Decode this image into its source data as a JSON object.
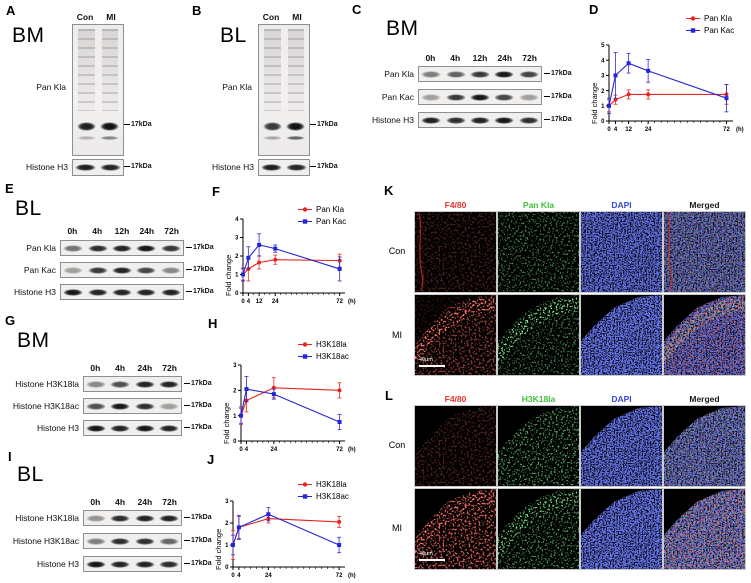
{
  "panels": {
    "A": {
      "label": "A",
      "tissue": "BM",
      "lanes": [
        "Con",
        "MI"
      ],
      "probe": "Pan Kla",
      "marker": "17kDa",
      "loading_control": "Histone H3",
      "main_band_intensities": [
        0.92,
        0.97
      ],
      "sub_band_intensities": [
        0.25,
        0.45
      ],
      "h3_intensities": [
        0.92,
        0.9
      ]
    },
    "B": {
      "label": "B",
      "tissue": "BL",
      "lanes": [
        "Con",
        "MI"
      ],
      "probe": "Pan Kla",
      "marker": "17kDa",
      "loading_control": "Histone H3",
      "main_band_intensities": [
        0.8,
        0.98
      ],
      "sub_band_intensities": [
        0.3,
        0.6
      ],
      "h3_intensities": [
        0.92,
        0.88
      ]
    },
    "C": {
      "label": "C",
      "tissue": "BM",
      "marker": "17kDa",
      "timepoints": [
        "0h",
        "4h",
        "12h",
        "24h",
        "72h"
      ],
      "rows": [
        {
          "name": "Pan Kla",
          "intensities": [
            0.5,
            0.62,
            0.8,
            0.95,
            0.75
          ]
        },
        {
          "name": "Pan Kac",
          "intensities": [
            0.35,
            0.8,
            0.95,
            0.75,
            0.35
          ]
        },
        {
          "name": "Histone H3",
          "intensities": [
            0.92,
            0.85,
            0.9,
            0.95,
            0.85
          ]
        }
      ]
    },
    "E": {
      "label": "E",
      "tissue": "BL",
      "marker": "17kDa",
      "timepoints": [
        "0h",
        "4h",
        "12h",
        "24h",
        "72h"
      ],
      "rows": [
        {
          "name": "Pan Kla",
          "intensities": [
            0.55,
            0.85,
            0.9,
            0.95,
            0.8
          ]
        },
        {
          "name": "Pan Kac",
          "intensities": [
            0.35,
            0.8,
            0.9,
            0.75,
            0.45
          ]
        },
        {
          "name": "Histone H3",
          "intensities": [
            0.95,
            0.9,
            0.9,
            0.9,
            0.9
          ]
        }
      ]
    },
    "G": {
      "label": "G",
      "tissue": "BM",
      "marker": "17kDa",
      "timepoints": [
        "0h",
        "4h",
        "24h",
        "72h"
      ],
      "rows": [
        {
          "name": "Histone H3K18la",
          "intensities": [
            0.45,
            0.7,
            0.9,
            0.9
          ]
        },
        {
          "name": "Histone H3K18ac",
          "intensities": [
            0.7,
            0.95,
            0.85,
            0.35
          ]
        },
        {
          "name": "Histone H3",
          "intensities": [
            0.95,
            0.9,
            0.95,
            0.9
          ]
        }
      ]
    },
    "I": {
      "label": "I",
      "tissue": "BL",
      "marker": "17kDa",
      "timepoints": [
        "0h",
        "4h",
        "24h",
        "72h"
      ],
      "rows": [
        {
          "name": "Histone H3K18la",
          "intensities": [
            0.4,
            0.85,
            0.9,
            0.9
          ]
        },
        {
          "name": "Histone H3K18ac",
          "intensities": [
            0.5,
            0.85,
            0.85,
            0.6
          ]
        },
        {
          "name": "Histone H3",
          "intensities": [
            0.95,
            0.9,
            0.9,
            0.85
          ]
        }
      ]
    }
  },
  "chart_data": [
    {
      "panel": "D",
      "type": "line",
      "ylabel": "Fold change",
      "xlabel_unit": "(h)",
      "grid": false,
      "legend_position": "top-right",
      "x": [
        0,
        4,
        12,
        24,
        72
      ],
      "x_tick_labels": [
        "0",
        "4",
        "12",
        "24",
        "72"
      ],
      "xlim": [
        0,
        76
      ],
      "ylim": [
        0,
        5
      ],
      "yticks": [
        0,
        1,
        2,
        3,
        4,
        5
      ],
      "series": [
        {
          "name": "Pan Kla",
          "color": "#e8251e",
          "marker": "circle",
          "values": [
            1.0,
            1.4,
            1.75,
            1.75,
            1.75
          ],
          "errors": [
            0.4,
            0.3,
            0.3,
            0.3,
            0.65
          ]
        },
        {
          "name": "Pan Kac",
          "color": "#2525d8",
          "marker": "square",
          "values": [
            1.0,
            3.0,
            3.8,
            3.3,
            1.5
          ],
          "errors": [
            0.5,
            1.5,
            0.65,
            0.75,
            0.9
          ]
        }
      ]
    },
    {
      "panel": "F",
      "type": "line",
      "ylabel": "Fold change",
      "xlabel_unit": "(h)",
      "grid": false,
      "legend_position": "top-right",
      "x": [
        0,
        4,
        12,
        24,
        72
      ],
      "x_tick_labels": [
        "0",
        "4",
        "12",
        "24",
        "72"
      ],
      "xlim": [
        0,
        76
      ],
      "ylim": [
        0,
        4
      ],
      "yticks": [
        0,
        1,
        2,
        3,
        4
      ],
      "series": [
        {
          "name": "Pan Kla",
          "color": "#e8251e",
          "marker": "circle",
          "values": [
            1.0,
            1.3,
            1.65,
            1.8,
            1.75
          ],
          "errors": [
            0.3,
            0.65,
            0.35,
            0.25,
            0.35
          ]
        },
        {
          "name": "Pan Kac",
          "color": "#2525d8",
          "marker": "square",
          "values": [
            1.0,
            1.9,
            2.6,
            2.4,
            1.3
          ],
          "errors": [
            0.35,
            0.6,
            0.6,
            0.2,
            0.65
          ]
        }
      ]
    },
    {
      "panel": "H",
      "type": "line",
      "ylabel": "Fold change",
      "xlabel_unit": "(h)",
      "grid": false,
      "legend_position": "top-right",
      "x": [
        0,
        4,
        24,
        72
      ],
      "x_tick_labels": [
        "0",
        "4",
        "24",
        "72"
      ],
      "xlim": [
        0,
        76
      ],
      "ylim": [
        0,
        3
      ],
      "yticks": [
        0,
        1,
        2,
        3
      ],
      "series": [
        {
          "name": "H3K18la",
          "color": "#e8251e",
          "marker": "circle",
          "values": [
            1.0,
            1.6,
            2.1,
            2.0
          ],
          "errors": [
            0.35,
            0.45,
            0.4,
            0.3
          ]
        },
        {
          "name": "H3K18ac",
          "color": "#2525d8",
          "marker": "square",
          "values": [
            1.0,
            2.05,
            1.85,
            0.75
          ],
          "errors": [
            0.3,
            0.5,
            0.2,
            0.3
          ]
        }
      ]
    },
    {
      "panel": "J",
      "type": "line",
      "ylabel": "Fold change",
      "xlabel_unit": "(h)",
      "grid": false,
      "legend_position": "top-right",
      "x": [
        0,
        4,
        24,
        72
      ],
      "x_tick_labels": [
        "0",
        "4",
        "24",
        "72"
      ],
      "xlim": [
        0,
        76
      ],
      "ylim": [
        0,
        3
      ],
      "yticks": [
        0,
        1,
        2,
        3
      ],
      "series": [
        {
          "name": "H3K18la",
          "color": "#e8251e",
          "marker": "circle",
          "values": [
            1.0,
            1.8,
            2.2,
            2.05
          ],
          "errors": [
            0.65,
            0.5,
            0.2,
            0.25
          ]
        },
        {
          "name": "H3K18ac",
          "color": "#2525d8",
          "marker": "square",
          "values": [
            1.0,
            1.8,
            2.4,
            1.0
          ],
          "errors": [
            0.45,
            0.55,
            0.3,
            0.35
          ]
        }
      ]
    }
  ],
  "K": {
    "label": "K",
    "rows": [
      "Con",
      "MI"
    ],
    "scale_bar": "40μm",
    "columns": [
      {
        "label": "F4/80",
        "color": "#e8332a"
      },
      {
        "label": "Pan Kla",
        "color": "#3cbf3c"
      },
      {
        "label": "DAPI",
        "color": "#3747d6"
      },
      {
        "label": "Merged",
        "color": "#1a1a1a"
      }
    ]
  },
  "L": {
    "label": "L",
    "rows": [
      "Con",
      "MI"
    ],
    "scale_bar": "40μm",
    "columns": [
      {
        "label": "F4/80",
        "color": "#e8332a"
      },
      {
        "label": "H3K18la",
        "color": "#3cbf3c"
      },
      {
        "label": "DAPI",
        "color": "#3747d6"
      },
      {
        "label": "Merged",
        "color": "#1a1a1a"
      }
    ]
  }
}
